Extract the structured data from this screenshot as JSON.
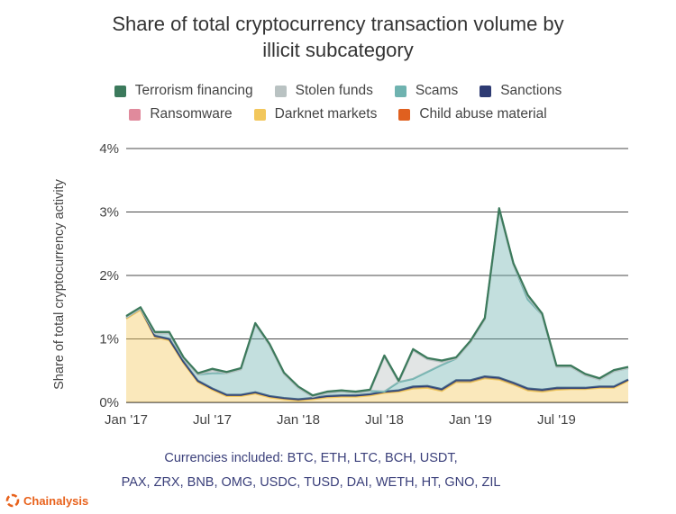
{
  "title_lines": [
    "Share of total cryptocurrency transaction volume by",
    "illicit subcategory"
  ],
  "legend": [
    {
      "name": "Terrorism financing",
      "color": "#3c7a5c"
    },
    {
      "name": "Stolen funds",
      "color": "#b9c2c2"
    },
    {
      "name": "Scams",
      "color": "#6fb3b0"
    },
    {
      "name": "Sanctions",
      "color": "#2e3b73"
    },
    {
      "name": "Ransomware",
      "color": "#e08a9c"
    },
    {
      "name": "Darknet markets",
      "color": "#f2c75c"
    },
    {
      "name": "Child abuse material",
      "color": "#e0601f"
    }
  ],
  "note_lines": [
    "Currencies included: BTC, ETH, LTC, BCH, USDT,",
    "PAX, ZRX, BNB, OMG, USDC, TUSD, DAI, WETH, HT, GNO, ZIL"
  ],
  "brand": "Chainalysis",
  "chart_data": {
    "type": "area",
    "stacked": true,
    "title": "Share of total cryptocurrency transaction volume by illicit subcategory",
    "ylabel": "Share of total cryptocurrency activity",
    "xlabel": "",
    "ylim": [
      0,
      4
    ],
    "yticks": [
      "0%",
      "1%",
      "2%",
      "3%",
      "4%"
    ],
    "xticks": [
      "Jan '17",
      "Jul '17",
      "Jan '18",
      "Jul '18",
      "Jan '19",
      "Jul '19"
    ],
    "grid": true,
    "legend_position": "top",
    "x": [
      "2017-01",
      "2017-02",
      "2017-03",
      "2017-04",
      "2017-05",
      "2017-06",
      "2017-07",
      "2017-08",
      "2017-09",
      "2017-10",
      "2017-11",
      "2017-12",
      "2018-01",
      "2018-02",
      "2018-03",
      "2018-04",
      "2018-05",
      "2018-06",
      "2018-07",
      "2018-08",
      "2018-09",
      "2018-10",
      "2018-11",
      "2018-12",
      "2019-01",
      "2019-02",
      "2019-03",
      "2019-04",
      "2019-05",
      "2019-06",
      "2019-07",
      "2019-08",
      "2019-09",
      "2019-10",
      "2019-11",
      "2019-12"
    ],
    "series": [
      {
        "name": "Darknet markets",
        "color": "#f2c75c",
        "values": [
          1.32,
          1.46,
          1.03,
          0.98,
          0.62,
          0.32,
          0.2,
          0.1,
          0.1,
          0.14,
          0.08,
          0.05,
          0.03,
          0.05,
          0.08,
          0.09,
          0.09,
          0.11,
          0.15,
          0.17,
          0.22,
          0.23,
          0.18,
          0.32,
          0.32,
          0.38,
          0.36,
          0.28,
          0.19,
          0.17,
          0.2,
          0.21,
          0.21,
          0.23,
          0.23,
          0.34
        ]
      },
      {
        "name": "Sanctions",
        "color": "#2e3b73",
        "values": [
          0.02,
          0.02,
          0.02,
          0.02,
          0.02,
          0.02,
          0.02,
          0.02,
          0.02,
          0.02,
          0.02,
          0.02,
          0.02,
          0.02,
          0.02,
          0.02,
          0.02,
          0.02,
          0.02,
          0.02,
          0.03,
          0.03,
          0.03,
          0.03,
          0.03,
          0.03,
          0.03,
          0.03,
          0.03,
          0.03,
          0.03,
          0.02,
          0.02,
          0.02,
          0.02,
          0.02
        ]
      },
      {
        "name": "Scams",
        "color": "#6fb3b0",
        "values": [
          0.0,
          0.0,
          0.04,
          0.09,
          0.05,
          0.1,
          0.24,
          0.34,
          0.4,
          1.07,
          0.8,
          0.38,
          0.18,
          0.02,
          0.05,
          0.06,
          0.04,
          0.05,
          0.0,
          0.13,
          0.12,
          0.22,
          0.38,
          0.34,
          0.6,
          0.9,
          2.65,
          1.86,
          1.4,
          1.18,
          0.33,
          0.33,
          0.2,
          0.11,
          0.24,
          0.18
        ]
      },
      {
        "name": "Stolen funds",
        "color": "#b9c2c2",
        "values": [
          0.0,
          0.0,
          0.0,
          0.0,
          0.0,
          0.0,
          0.05,
          0.0,
          0.0,
          0.0,
          0.0,
          0.0,
          0.0,
          0.0,
          0.0,
          0.0,
          0.0,
          0.0,
          0.55,
          0.0,
          0.45,
          0.2,
          0.05,
          0.0,
          0.0,
          0.0,
          0.0,
          0.0,
          0.05,
          0.0,
          0.0,
          0.0,
          0.0,
          0.0,
          0.0,
          0.0
        ]
      },
      {
        "name": "Terrorism financing",
        "color": "#3c7a5c",
        "values": [
          0.02,
          0.02,
          0.02,
          0.02,
          0.02,
          0.02,
          0.02,
          0.02,
          0.02,
          0.02,
          0.02,
          0.02,
          0.02,
          0.02,
          0.02,
          0.02,
          0.02,
          0.02,
          0.02,
          0.02,
          0.02,
          0.02,
          0.02,
          0.02,
          0.02,
          0.02,
          0.02,
          0.02,
          0.02,
          0.02,
          0.02,
          0.02,
          0.02,
          0.02,
          0.02,
          0.02
        ]
      },
      {
        "name": "Ransomware",
        "color": "#e08a9c",
        "values": [
          0.0,
          0.0,
          0.0,
          0.0,
          0.0,
          0.0,
          0.0,
          0.0,
          0.0,
          0.0,
          0.0,
          0.0,
          0.0,
          0.0,
          0.0,
          0.0,
          0.0,
          0.0,
          0.0,
          0.0,
          0.0,
          0.0,
          0.0,
          0.0,
          0.0,
          0.0,
          0.0,
          0.0,
          0.0,
          0.0,
          0.0,
          0.0,
          0.0,
          0.0,
          0.0,
          0.0
        ]
      },
      {
        "name": "Child abuse material",
        "color": "#e0601f",
        "values": [
          0.0,
          0.0,
          0.0,
          0.0,
          0.0,
          0.0,
          0.0,
          0.0,
          0.0,
          0.0,
          0.0,
          0.0,
          0.0,
          0.0,
          0.0,
          0.0,
          0.0,
          0.0,
          0.0,
          0.0,
          0.0,
          0.0,
          0.0,
          0.0,
          0.0,
          0.0,
          0.0,
          0.0,
          0.0,
          0.0,
          0.0,
          0.0,
          0.0,
          0.0,
          0.0,
          0.0
        ]
      }
    ]
  }
}
